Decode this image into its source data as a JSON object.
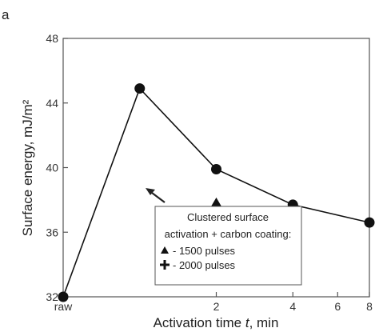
{
  "panel_label": "a",
  "chart_data": {
    "type": "scatter",
    "ylabel": "Surface energy, mJ/m²",
    "xlabel_parts": [
      "Activation time ",
      "t",
      ", min"
    ],
    "ylim": [
      32,
      48
    ],
    "y_ticks": [
      32,
      36,
      40,
      44,
      48
    ],
    "x_ticks": [
      {
        "x": 0,
        "label": "raw"
      },
      {
        "x": 2,
        "label": "2"
      },
      {
        "x": 4,
        "label": "4"
      },
      {
        "x": 6,
        "label": "6"
      },
      {
        "x": 8,
        "label": "8"
      }
    ],
    "xlim": [
      0,
      8
    ],
    "x_scale": "mixed: raw at origin, then 1, 2 and 4 minutes, 8 at right end",
    "grid": false,
    "series": [
      {
        "marker": "circle",
        "line": true,
        "points": [
          {
            "x": "raw",
            "y": 32
          },
          {
            "x": 1,
            "y": 44.9
          },
          {
            "x": 2,
            "y": 39.9
          },
          {
            "x": 4,
            "y": 37.7
          },
          {
            "x": 8,
            "y": 36.6
          }
        ]
      },
      {
        "name": "1500 pulses",
        "marker": "triangle",
        "line": false,
        "points": [
          {
            "x": 2,
            "y": 37.8
          }
        ]
      },
      {
        "name": "2000 pulses",
        "marker": "plus",
        "line": false,
        "points": [
          {
            "x": 2,
            "y": 36.8
          }
        ]
      }
    ],
    "legend": {
      "title_lines": [
        "Clustered surface",
        "activation + carbon coating:"
      ],
      "entries": [
        "- 1500 pulses",
        "- 2000 pulses"
      ],
      "placement": "lower-middle",
      "arrow": true
    }
  }
}
